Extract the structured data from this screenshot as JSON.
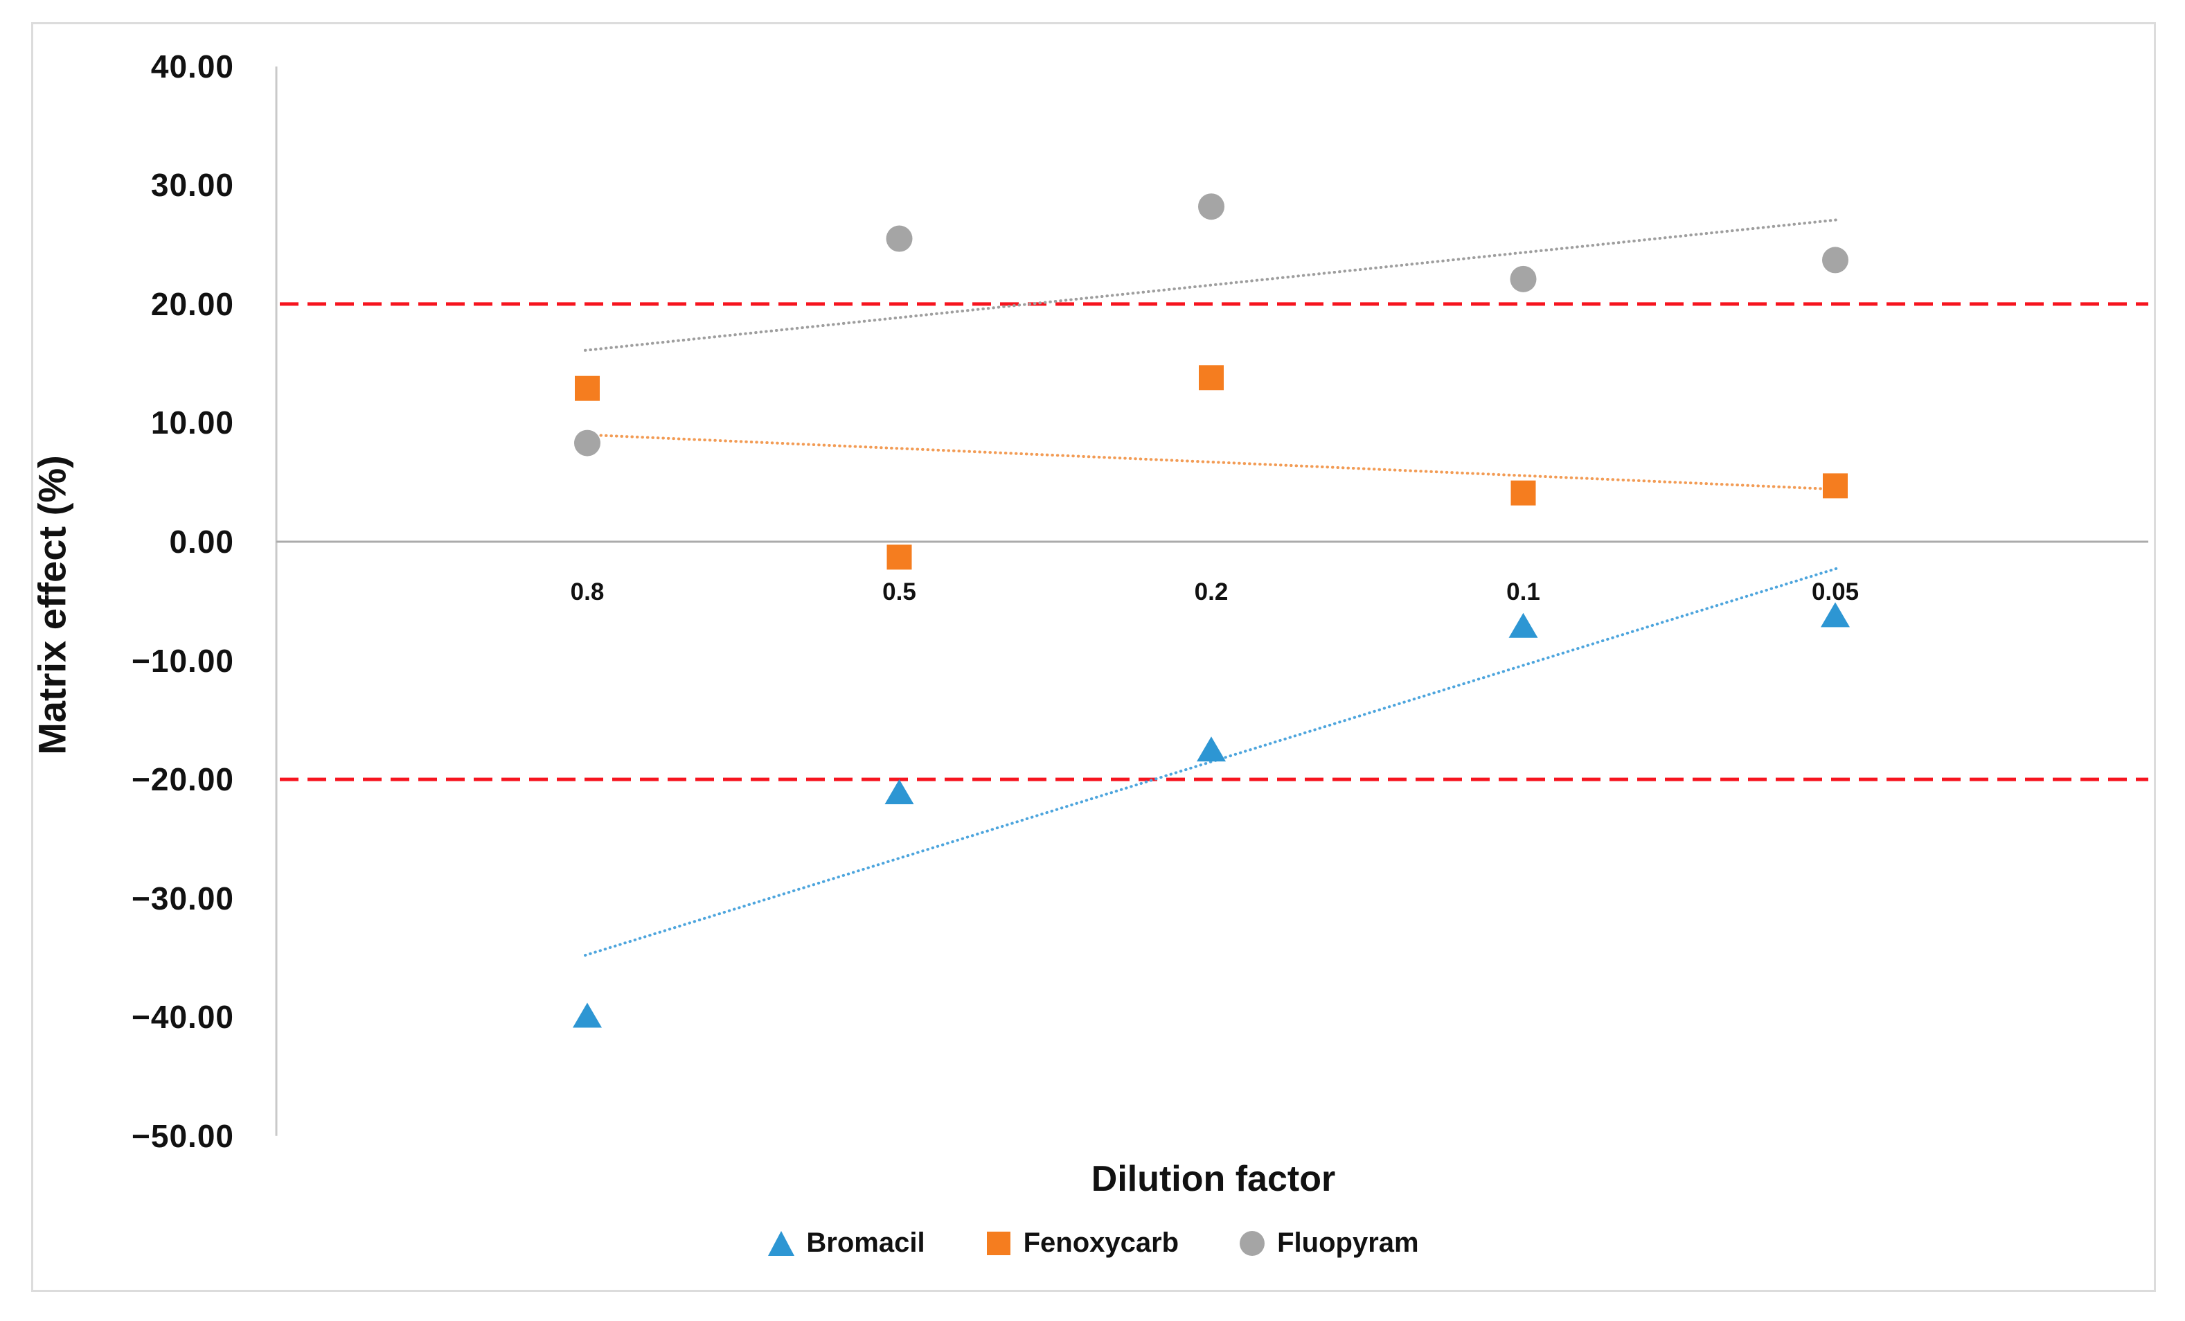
{
  "chart_data": {
    "type": "scatter",
    "title": "",
    "xlabel": "Dilution factor",
    "ylabel": "Matrix effect (%)",
    "categories": [
      "0.8",
      "0.5",
      "0.2",
      "0.1",
      "0.05"
    ],
    "ylim": [
      -50,
      40
    ],
    "ytick_step": 10,
    "yticks": [
      {
        "value": 40,
        "label": "40.00"
      },
      {
        "value": 30,
        "label": "30.00"
      },
      {
        "value": 20,
        "label": "20.00"
      },
      {
        "value": 10,
        "label": "10.00"
      },
      {
        "value": 0,
        "label": "0.00"
      },
      {
        "value": -10,
        "label": "−10.00"
      },
      {
        "value": -20,
        "label": "−20.00"
      },
      {
        "value": -30,
        "label": "−30.00"
      },
      {
        "value": -40,
        "label": "−40.00"
      },
      {
        "value": -50,
        "label": "−50.00"
      }
    ],
    "grid": "zero-line-only",
    "legend_position": "bottom",
    "axis_color": "#c9c9c9",
    "zero_line_color": "#ababab",
    "reference_lines": [
      {
        "y": 20,
        "style": "dashed",
        "color": "#f6141e"
      },
      {
        "y": -20,
        "style": "dashed",
        "color": "#f6141e"
      }
    ],
    "series": [
      {
        "name": "Bromacil",
        "marker": "triangle",
        "color": "#2d96d3",
        "values": [
          -39.9,
          -21.1,
          -17.5,
          -7.1,
          -6.2
        ],
        "trendline": {
          "style": "dotted",
          "color": "#4da5dd",
          "start": -34.8,
          "end": -2.2
        }
      },
      {
        "name": "Fenoxycarb",
        "marker": "square",
        "color": "#f57d1f",
        "values": [
          12.9,
          -1.3,
          13.8,
          4.1,
          4.7
        ],
        "trendline": {
          "style": "dotted",
          "color": "#f29b54",
          "start": 9.0,
          "end": 4.4
        }
      },
      {
        "name": "Fluopyram",
        "marker": "circle",
        "color": "#a5a5a5",
        "values": [
          8.3,
          25.5,
          28.2,
          22.1,
          23.7
        ],
        "trendline": {
          "style": "dotted",
          "color": "#9e9e9e",
          "start": 16.1,
          "end": 27.1
        }
      }
    ]
  }
}
